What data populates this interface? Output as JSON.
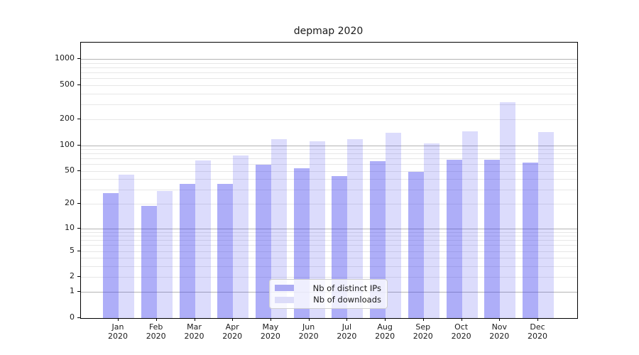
{
  "title": "depmap 2020",
  "colors": {
    "bar_ips": "rgba(62,62,238,0.42)",
    "bar_downloads": "rgba(62,62,238,0.18)",
    "legend_swatch_ips": "#abaaf3",
    "legend_swatch_downloads": "#dcdcf9",
    "grid_decade": "#b4b4b4",
    "grid_minor": "#e7e7e7",
    "spine": "#000000",
    "text": "#1a1a1a"
  },
  "chart_data": {
    "type": "bar",
    "title": "depmap 2020",
    "xlabel": "",
    "ylabel": "",
    "yscale": "symlog-like (log of value+1), 0 at baseline",
    "categories": [
      "Jan 2020",
      "Feb 2020",
      "Mar 2020",
      "Apr 2020",
      "May 2020",
      "Jun 2020",
      "Jul 2020",
      "Aug 2020",
      "Sep 2020",
      "Oct 2020",
      "Nov 2020",
      "Dec 2020"
    ],
    "series": [
      {
        "name": "Nb of distinct IPs",
        "values": [
          27,
          19,
          35,
          35,
          59,
          54,
          43,
          65,
          49,
          68,
          67,
          62
        ]
      },
      {
        "name": "Nb of downloads",
        "values": [
          45,
          29,
          66,
          76,
          118,
          111,
          118,
          140,
          104,
          146,
          320,
          143
        ]
      }
    ],
    "yticks": [
      0,
      1,
      2,
      5,
      10,
      20,
      50,
      100,
      200,
      500,
      1000
    ],
    "minor_gridline_values": [
      3,
      4,
      6,
      7,
      8,
      9,
      30,
      40,
      60,
      70,
      80,
      90,
      300,
      400,
      600,
      700,
      800,
      900
    ],
    "ylim": [
      0,
      1550
    ],
    "grid": true,
    "legend_position": "lower center"
  },
  "legend": {
    "items": [
      {
        "label": "Nb of distinct IPs"
      },
      {
        "label": "Nb of downloads"
      }
    ]
  }
}
